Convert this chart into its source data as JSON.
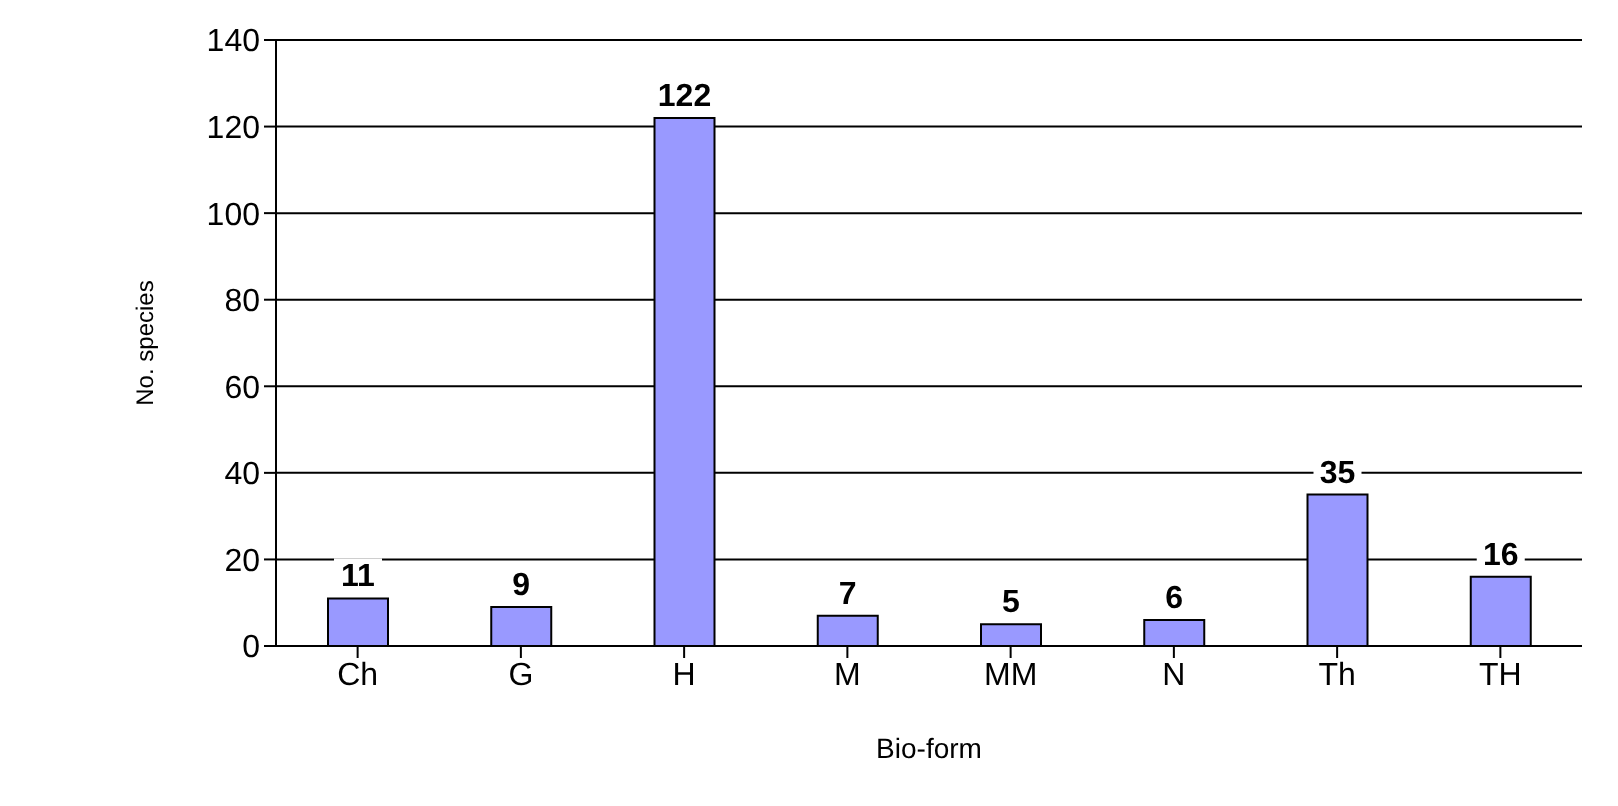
{
  "chart_data": {
    "type": "bar",
    "xlabel": "Bio-form",
    "ylabel": "No. species",
    "categories": [
      "Ch",
      "G",
      "H",
      "M",
      "MM",
      "N",
      "Th",
      "TH"
    ],
    "values": [
      11,
      9,
      122,
      7,
      5,
      6,
      35,
      16
    ],
    "color": "#9999ff",
    "ylim": [
      0,
      140
    ],
    "yticks": [
      0,
      20,
      40,
      60,
      80,
      100,
      120,
      140
    ],
    "grid": "y",
    "data_labels": true
  }
}
